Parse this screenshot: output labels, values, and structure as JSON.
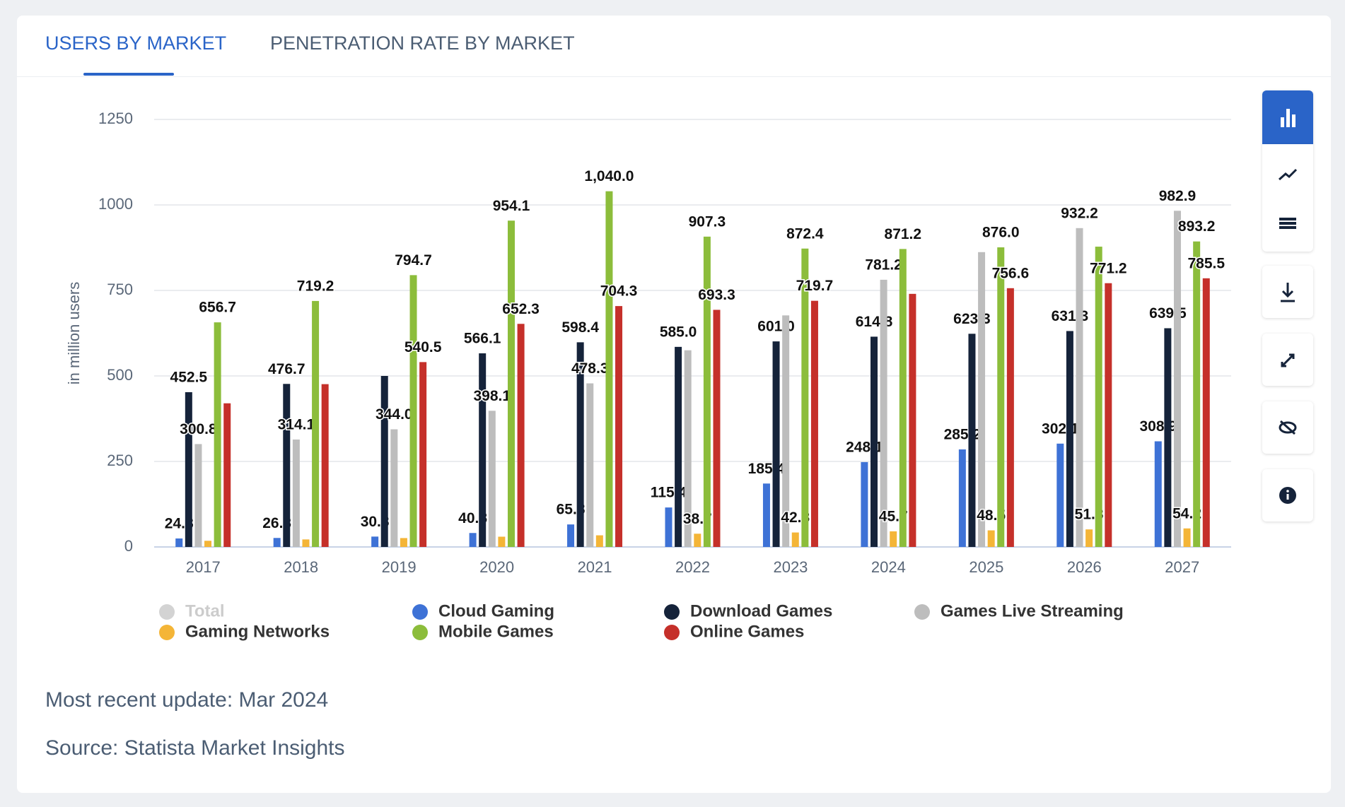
{
  "tabs": [
    "USERS BY MARKET",
    "PENETRATION RATE BY MARKET"
  ],
  "chart_data": {
    "type": "bar",
    "y_axis_label": "in million users",
    "categories": [
      "2017",
      "2018",
      "2019",
      "2020",
      "2021",
      "2022",
      "2023",
      "2024",
      "2025",
      "2026",
      "2027"
    ],
    "ylim": [
      0,
      1250
    ],
    "yticks": [
      0,
      250,
      500,
      750,
      1000,
      1250
    ],
    "grid": true,
    "series": [
      {
        "name": "Total",
        "color": "#d3d3d3",
        "visible": false
      },
      {
        "name": "Cloud Gaming",
        "color": "#3e72d6",
        "values": [
          24.8,
          26.3,
          30.3,
          40.8,
          65.8,
          115.4,
          185.4,
          248.1,
          285.2,
          302.1,
          308.9
        ],
        "value_labels": [
          "24.8",
          "26.3",
          "30.3",
          "40.8",
          "65.8",
          "115.4",
          "185.4",
          "248.1",
          "285.2",
          "302.1",
          "308.9"
        ]
      },
      {
        "name": "Download Games",
        "color": "#15233a",
        "values": [
          452.5,
          476.7,
          500,
          566.1,
          598.4,
          585.0,
          601.0,
          614.8,
          623.3,
          631.3,
          639.5
        ],
        "value_labels": [
          "452.5",
          "476.7",
          null,
          "566.1",
          "598.4",
          "585.0",
          "601.0",
          "614.8",
          "623.3",
          "631.3",
          "639.5"
        ]
      },
      {
        "name": "Games Live Streaming",
        "color": "#bdbdbd",
        "values": [
          300.8,
          314.1,
          344.0,
          398.1,
          478.3,
          575,
          677,
          781.2,
          862,
          932.2,
          982.9
        ],
        "value_labels": [
          "300.8",
          "314.1",
          "344.0",
          "398.1",
          "478.3",
          null,
          null,
          "781.2",
          null,
          "932.2",
          "982.9"
        ]
      },
      {
        "name": "Gaming Networks",
        "color": "#f4b537",
        "values": [
          18,
          22,
          26,
          30,
          34,
          38.7,
          42.3,
          45.7,
          48.5,
          51.3,
          54.2
        ],
        "value_labels": [
          null,
          null,
          null,
          null,
          null,
          "38.7",
          "42.3",
          "45.7",
          "48.5",
          "51.3",
          "54.2"
        ]
      },
      {
        "name": "Mobile Games",
        "color": "#8cbd3b",
        "values": [
          656.7,
          719.2,
          794.7,
          954.1,
          1040.0,
          907.3,
          872.4,
          871.2,
          876.0,
          878,
          893.2
        ],
        "value_labels": [
          "656.7",
          "719.2",
          "794.7",
          "954.1",
          "1,040.0",
          "907.3",
          "872.4",
          "871.2",
          "876.0",
          null,
          "893.2"
        ]
      },
      {
        "name": "Online Games",
        "color": "#c5302a",
        "values": [
          420,
          476,
          540.5,
          652.3,
          704.3,
          693.3,
          719.7,
          740,
          756.6,
          771.2,
          785.5
        ],
        "value_labels": [
          null,
          null,
          "540.5",
          "652.3",
          "704.3",
          "693.3",
          "719.7",
          null,
          "756.6",
          "771.2",
          "785.5"
        ]
      }
    ]
  },
  "footer": {
    "update": "Most recent update: Mar 2024",
    "source": "Source: Statista Market Insights"
  }
}
